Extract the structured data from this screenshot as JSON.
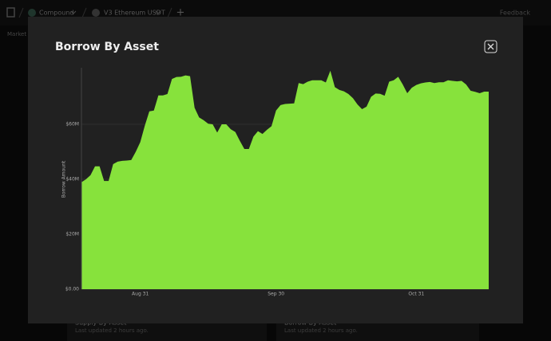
{
  "nav": {
    "protocol": "Compound",
    "market": "V3 Ethereum USDT",
    "add": "+",
    "feedback": "Feedback",
    "tab": "Market"
  },
  "cards": [
    {
      "title": "Supply By Asset",
      "updated": "Last updated 2 hours ago."
    },
    {
      "title": "Borrow By Asset",
      "updated": "Last updated 2 hours ago."
    }
  ],
  "chart_data": {
    "type": "area",
    "title": "Borrow By Asset",
    "ylabel": "Borrow Amount",
    "color": "#87e23c",
    "grid": true,
    "categories": [
      null,
      null,
      null,
      null,
      null,
      null,
      null,
      null,
      null,
      null,
      null,
      null,
      null,
      "Aug 31",
      null,
      null,
      null,
      null,
      null,
      null,
      null,
      null,
      null,
      null,
      null,
      null,
      null,
      null,
      null,
      null,
      null,
      null,
      null,
      null,
      null,
      null,
      null,
      null,
      null,
      null,
      null,
      null,
      null,
      "Sep 30",
      null,
      null,
      null,
      null,
      null,
      null,
      null,
      null,
      null,
      null,
      null,
      null,
      null,
      null,
      null,
      null,
      null,
      null,
      null,
      null,
      null,
      null,
      null,
      null,
      null,
      null,
      null,
      null,
      null,
      null,
      "Oct 31",
      null,
      null,
      null,
      null,
      null,
      null,
      null,
      null,
      null,
      null,
      null,
      null,
      null,
      null,
      null,
      null
    ],
    "values": [
      38.9,
      40,
      41.5,
      44.7,
      44.7,
      39.4,
      39.4,
      45.5,
      46.4,
      46.7,
      46.8,
      47,
      50,
      53.5,
      59.5,
      64.7,
      65,
      70.5,
      70.5,
      71,
      76.5,
      77.2,
      77.3,
      77.8,
      77.5,
      66,
      62.5,
      61.5,
      60.2,
      60,
      57,
      60,
      60,
      58.2,
      57.2,
      54,
      51,
      51,
      55.5,
      57.5,
      56.5,
      58,
      59.3,
      65,
      67,
      67.4,
      67.5,
      67.6,
      75,
      74.6,
      75.5,
      76,
      76,
      76,
      75.2,
      79.5,
      73.5,
      72.5,
      72,
      71,
      69.5,
      67.2,
      65.5,
      66.4,
      70,
      71.2,
      71.1,
      70.4,
      75.5,
      76,
      77.3,
      74.5,
      71.3,
      73.3,
      74.3,
      74.9,
      75.2,
      75.4,
      75,
      75.3,
      75.3,
      76,
      75.8,
      75.6,
      75.8,
      74.5,
      72.2,
      71.8,
      71.3,
      71.9,
      71.9
    ],
    "ylim": [
      0,
      80
    ],
    "yticks": [
      {
        "value": 0,
        "label": "$0.00"
      },
      {
        "value": 20,
        "label": "$20M"
      },
      {
        "value": 40,
        "label": "$40M"
      },
      {
        "value": 60,
        "label": "$60M"
      }
    ]
  }
}
